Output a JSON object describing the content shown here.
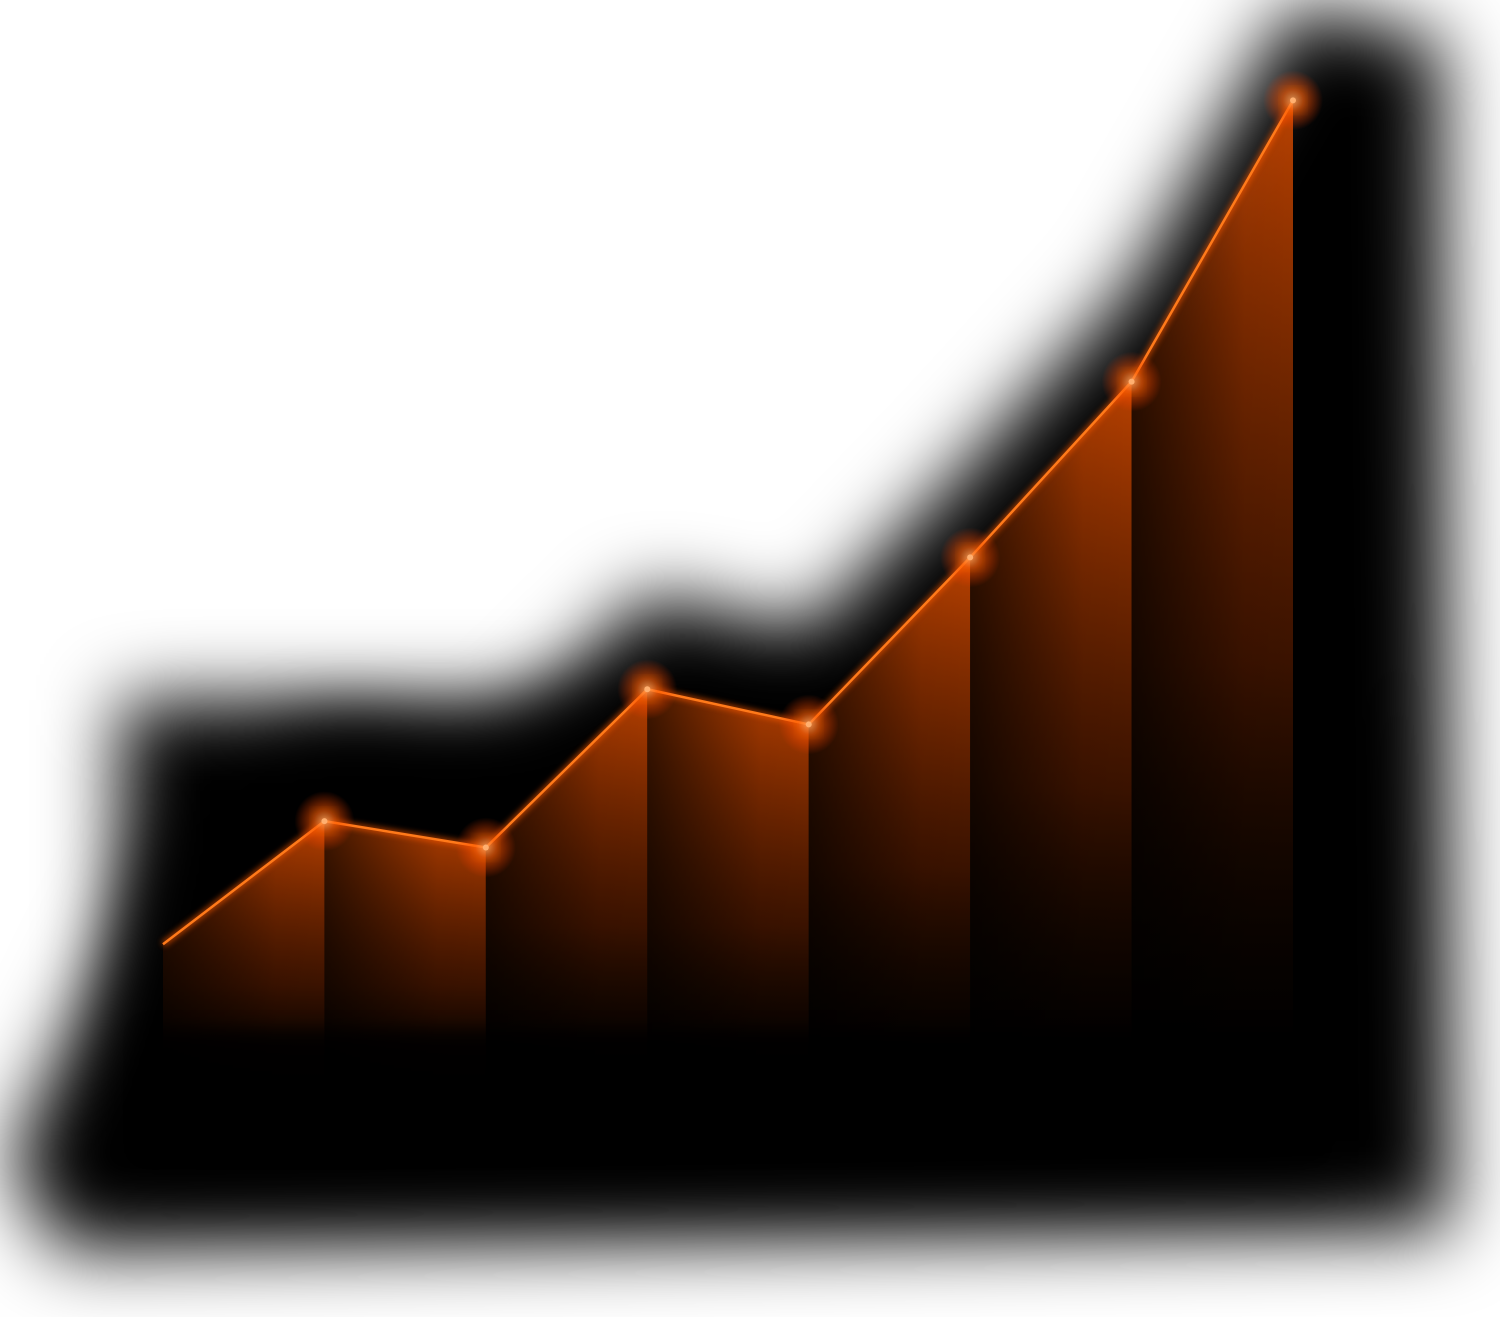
{
  "chart_data": {
    "type": "area",
    "title": "",
    "xlabel": "",
    "ylabel": "",
    "x": [
      1,
      2,
      3,
      4,
      5,
      6,
      7,
      8
    ],
    "values": [
      10,
      17,
      15.5,
      24.5,
      22.5,
      32,
      42,
      58
    ],
    "ylim": [
      0,
      62
    ],
    "markers_on": [
      2,
      3,
      4,
      5,
      6,
      7,
      8
    ],
    "grid": false,
    "legend": "none",
    "colors": {
      "background": "#ffffff",
      "halo": "#000000",
      "line": "#ff7a1a",
      "fill_top": "#c24400",
      "fill_bottom": "#000000",
      "glow": "#ff5a00"
    }
  }
}
